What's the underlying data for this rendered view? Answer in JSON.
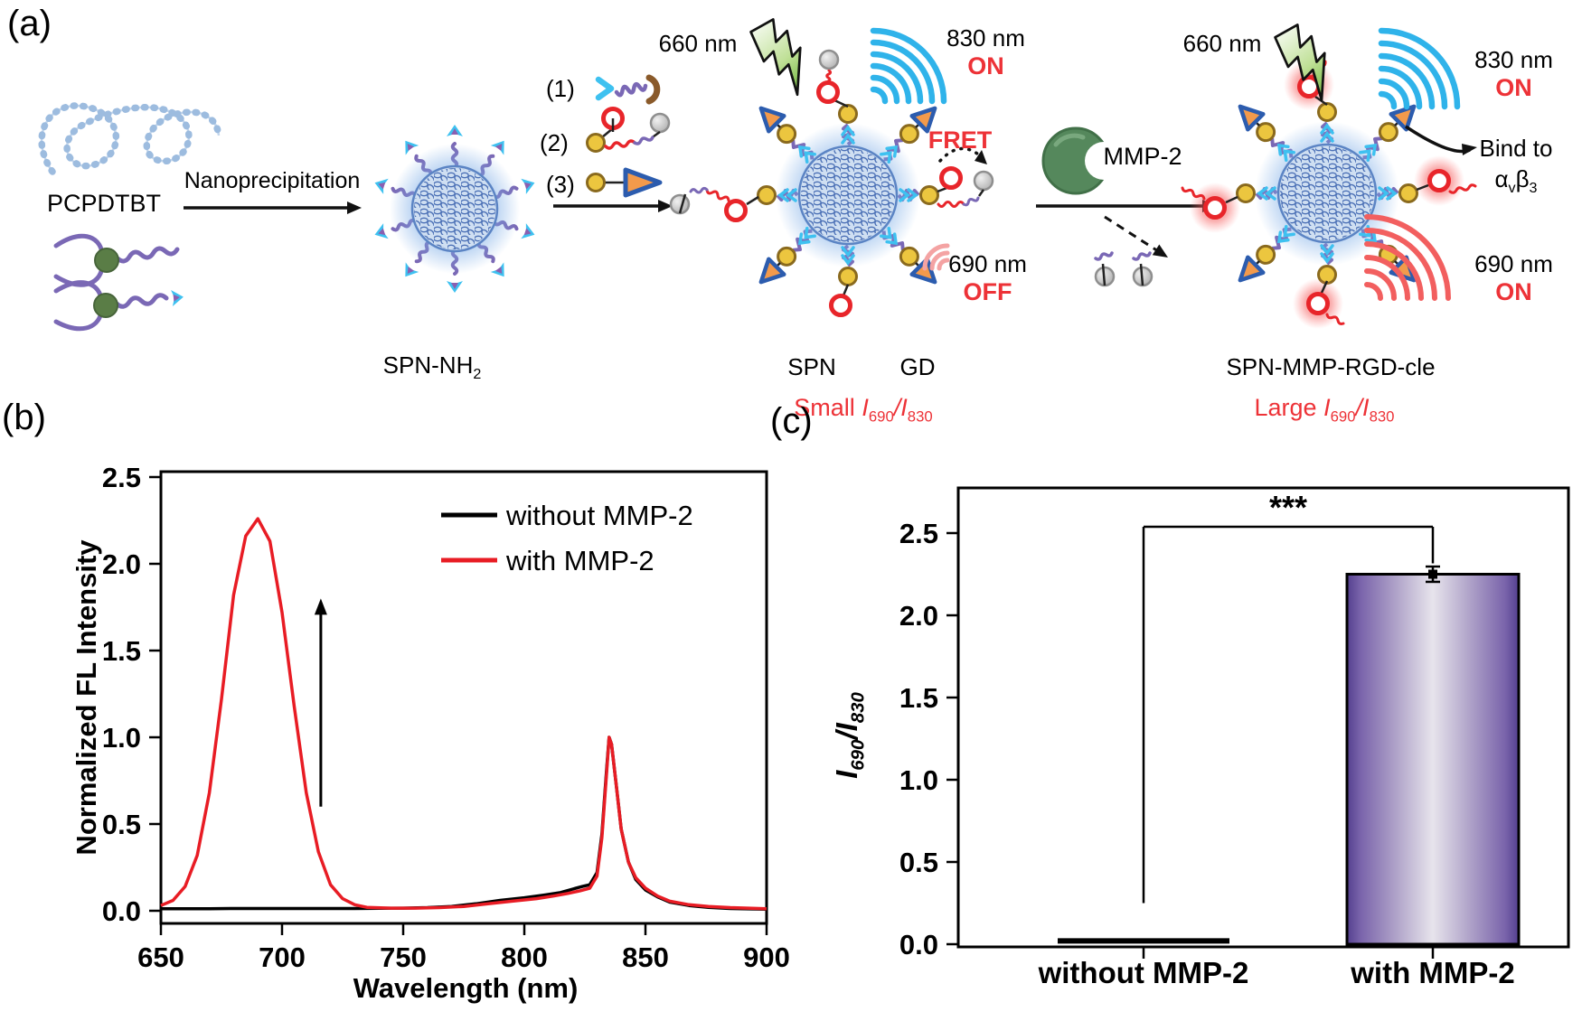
{
  "colors": {
    "accent_red": "#ed3237",
    "curve_red": "#e81c24",
    "curve_black": "#000000",
    "wave_blue": "#2fb3ea",
    "wave_red": "#f25f5f",
    "arm_purple": "#7a68b5",
    "enzyme_green": "#55885c",
    "bar_purple_edge": "#54408f",
    "bar_purple_mid": "#e7e4ec"
  },
  "panel_a": {
    "label": "(a)",
    "polymer_label": "PCPDTBT",
    "arrow_label": "Nanoprecipitation",
    "nanoparticle_label": {
      "base": "SPN-NH",
      "sub": "2"
    },
    "reagents": [
      "(1)",
      "(2)",
      "(3)"
    ],
    "excitation_left": "660 nm",
    "signal_830": "830 nm",
    "signal_830_state": "ON",
    "fret_label": "FRET",
    "signal_690": "690 nm",
    "signal_690_state": "OFF",
    "enzyme_label": "MMP-2",
    "spn_label": "SPN",
    "gd_label": "GD",
    "small_ratio": {
      "word": "Small",
      "i1": "I",
      "s1": "690",
      "sep": "/",
      "i2": "I",
      "s2": "830"
    },
    "excitation_right": "660 nm",
    "signal_830_right": "830 nm",
    "signal_830_right_state": "ON",
    "bind_to": "Bind to",
    "integrin": {
      "alpha": "α",
      "v": "v",
      "beta": "β",
      "three": "3"
    },
    "signal_690_right": "690 nm",
    "signal_690_right_state": "ON",
    "product_label": "SPN-MMP-RGD-cle",
    "large_ratio": {
      "word": "Large",
      "i1": "I",
      "s1": "690",
      "sep": "/",
      "i2": "I",
      "s2": "830"
    }
  },
  "panel_b": {
    "label": "(b)"
  },
  "panel_c": {
    "label": "(c)",
    "ylabel": {
      "i1": "I",
      "s1": "690",
      "sep": "/",
      "i2": "I",
      "s2": "830"
    },
    "significance": "***"
  },
  "chart_data": [
    {
      "id": "fl-spectra",
      "type": "line",
      "xlabel": "Wavelength (nm)",
      "ylabel": "Normalized FL Intensity",
      "xlim": [
        650,
        900
      ],
      "ylim": [
        0,
        2.5
      ],
      "xticks": [
        650,
        700,
        750,
        800,
        850,
        900
      ],
      "yticks": [
        0.0,
        0.5,
        1.0,
        1.5,
        2.0,
        2.5
      ],
      "grid": false,
      "legend_position": "inside-top-right",
      "series": [
        {
          "name": "without MMP-2",
          "color": "#000000",
          "points": [
            [
              650,
              0.012
            ],
            [
              660,
              0.012
            ],
            [
              670,
              0.012
            ],
            [
              680,
              0.013
            ],
            [
              690,
              0.013
            ],
            [
              700,
              0.013
            ],
            [
              710,
              0.013
            ],
            [
              720,
              0.013
            ],
            [
              730,
              0.013
            ],
            [
              740,
              0.014
            ],
            [
              750,
              0.015
            ],
            [
              760,
              0.018
            ],
            [
              770,
              0.025
            ],
            [
              780,
              0.04
            ],
            [
              790,
              0.06
            ],
            [
              800,
              0.075
            ],
            [
              808,
              0.09
            ],
            [
              815,
              0.105
            ],
            [
              820,
              0.125
            ],
            [
              824,
              0.14
            ],
            [
              827,
              0.15
            ],
            [
              830,
              0.22
            ],
            [
              832,
              0.44
            ],
            [
              834,
              0.82
            ],
            [
              835,
              1.0
            ],
            [
              836,
              0.96
            ],
            [
              838,
              0.72
            ],
            [
              840,
              0.47
            ],
            [
              843,
              0.28
            ],
            [
              846,
              0.18
            ],
            [
              850,
              0.12
            ],
            [
              855,
              0.08
            ],
            [
              860,
              0.05
            ],
            [
              868,
              0.03
            ],
            [
              876,
              0.02
            ],
            [
              885,
              0.013
            ],
            [
              900,
              0.009
            ]
          ]
        },
        {
          "name": "with MMP-2",
          "color": "#e81c24",
          "points": [
            [
              650,
              0.03
            ],
            [
              655,
              0.06
            ],
            [
              660,
              0.14
            ],
            [
              665,
              0.32
            ],
            [
              670,
              0.68
            ],
            [
              675,
              1.22
            ],
            [
              680,
              1.82
            ],
            [
              685,
              2.16
            ],
            [
              690,
              2.26
            ],
            [
              695,
              2.13
            ],
            [
              700,
              1.72
            ],
            [
              705,
              1.18
            ],
            [
              710,
              0.68
            ],
            [
              715,
              0.34
            ],
            [
              720,
              0.15
            ],
            [
              725,
              0.07
            ],
            [
              730,
              0.035
            ],
            [
              735,
              0.02
            ],
            [
              745,
              0.015
            ],
            [
              755,
              0.015
            ],
            [
              765,
              0.018
            ],
            [
              775,
              0.025
            ],
            [
              785,
              0.04
            ],
            [
              795,
              0.055
            ],
            [
              805,
              0.07
            ],
            [
              812,
              0.085
            ],
            [
              818,
              0.1
            ],
            [
              823,
              0.115
            ],
            [
              827,
              0.13
            ],
            [
              830,
              0.2
            ],
            [
              832,
              0.42
            ],
            [
              834,
              0.8
            ],
            [
              835,
              1.0
            ],
            [
              836,
              0.96
            ],
            [
              838,
              0.72
            ],
            [
              840,
              0.47
            ],
            [
              843,
              0.28
            ],
            [
              846,
              0.19
            ],
            [
              850,
              0.13
            ],
            [
              855,
              0.085
            ],
            [
              860,
              0.055
            ],
            [
              868,
              0.035
            ],
            [
              876,
              0.025
            ],
            [
              885,
              0.018
            ],
            [
              900,
              0.012
            ]
          ]
        }
      ],
      "annotation": {
        "type": "arrow-up",
        "x": 716,
        "y_start": 0.6,
        "y_end": 1.8
      }
    },
    {
      "id": "ratio-bars",
      "type": "bar",
      "categories": [
        "without MMP-2",
        "with MMP-2"
      ],
      "values": [
        0.02,
        2.25
      ],
      "errors": [
        0.0,
        0.03
      ],
      "ylabel": "I690/I830",
      "ylim": [
        0,
        2.8
      ],
      "yticks": [
        0.0,
        0.5,
        1.0,
        1.5,
        2.0,
        2.5
      ],
      "grid": false,
      "significance": {
        "label": "***",
        "between": [
          0,
          1
        ]
      },
      "bar_colors": [
        "#000000",
        "purple-gradient"
      ]
    }
  ]
}
